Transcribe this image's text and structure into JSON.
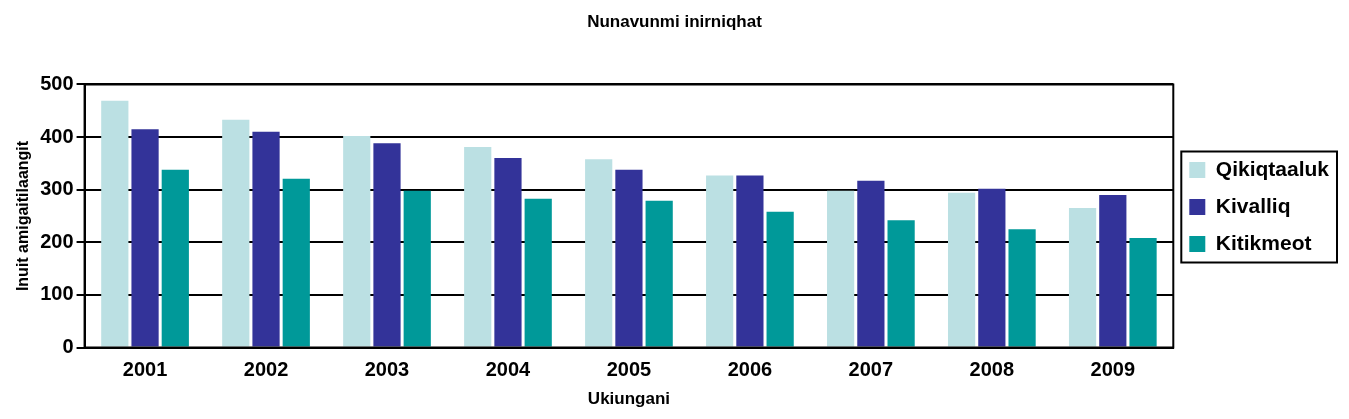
{
  "chart_data": {
    "type": "bar",
    "title": "Nunavunmi inirniqhat",
    "xlabel": "Ukiungani",
    "ylabel": "Inuit amigaitilaangit",
    "categories": [
      "2001",
      "2002",
      "2003",
      "2004",
      "2005",
      "2006",
      "2007",
      "2008",
      "2009"
    ],
    "series": [
      {
        "name": "Qikiqtaaluk",
        "color": "#bbe0e3",
        "values": [
          469,
          433,
          402,
          381,
          358,
          327,
          298,
          294,
          265
        ]
      },
      {
        "name": "Kivalliq",
        "color": "#333399",
        "values": [
          415,
          410,
          388,
          360,
          338,
          327,
          317,
          302,
          290
        ]
      },
      {
        "name": "Kitikmeot",
        "color": "#009999",
        "values": [
          338,
          321,
          298,
          283,
          279,
          258,
          242,
          225,
          208
        ]
      }
    ],
    "ylim": [
      0,
      500
    ],
    "yticks": [
      0,
      100,
      200,
      300,
      400,
      500
    ],
    "grid": "y",
    "legend": "right"
  }
}
